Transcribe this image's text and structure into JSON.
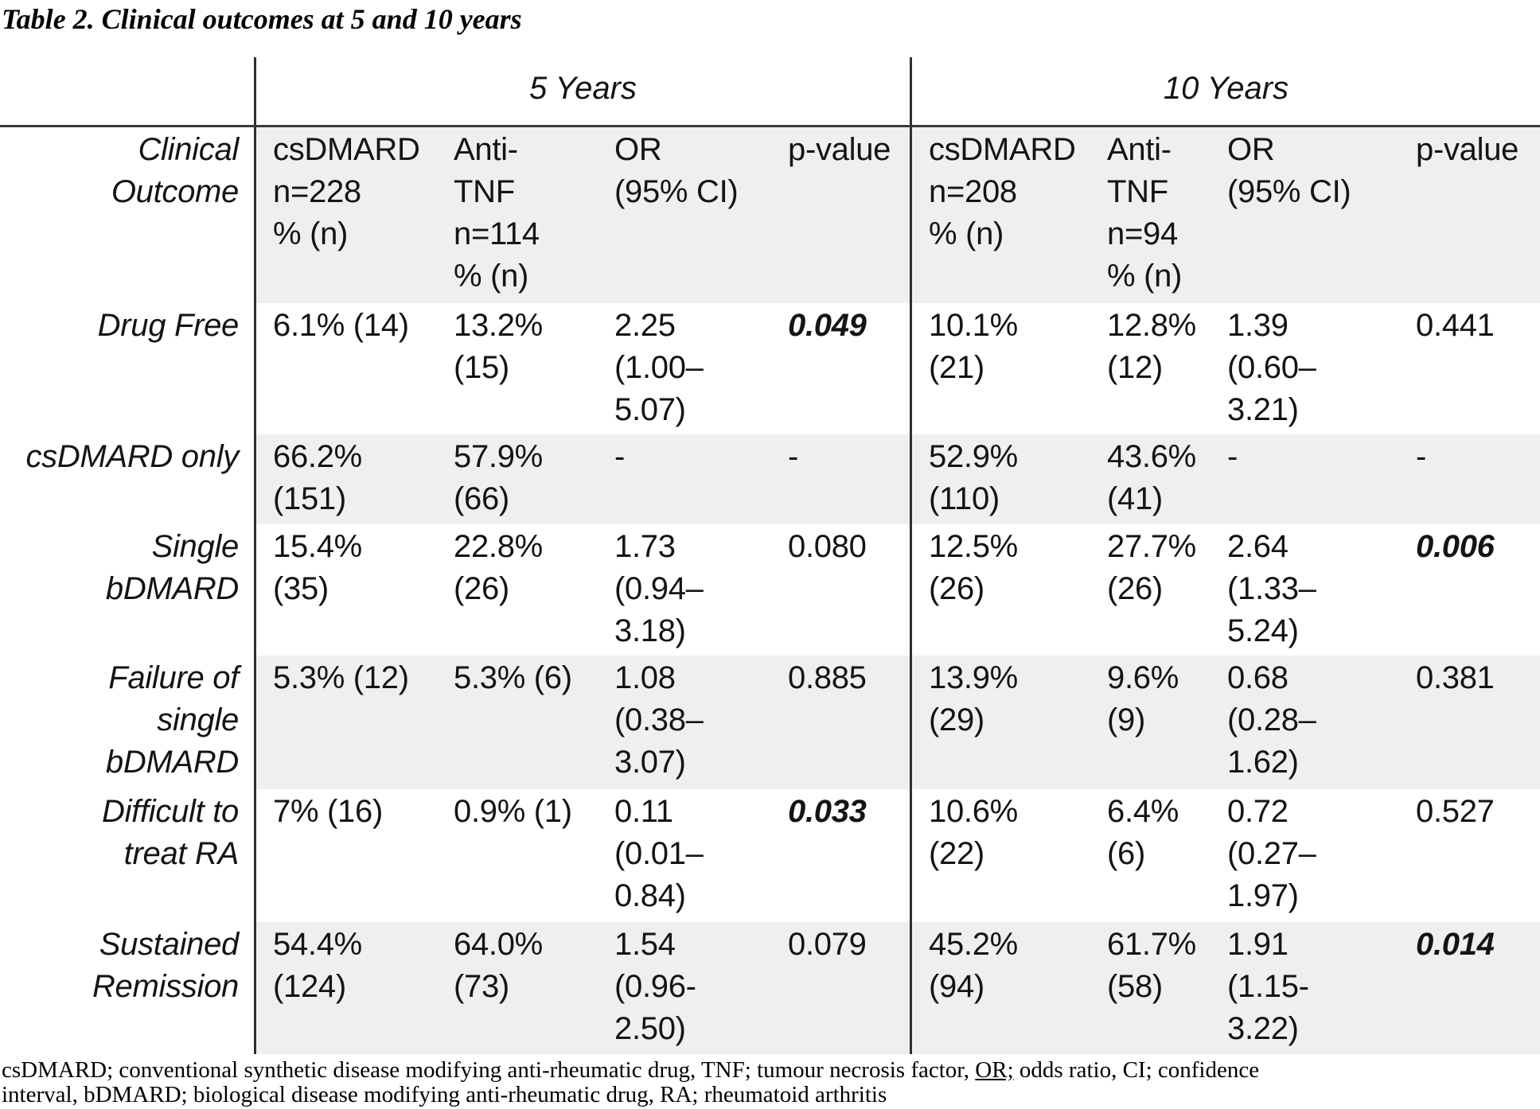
{
  "title": "Table 2. Clinical outcomes at 5 and 10 years",
  "table": {
    "group_headers": [
      "5 Years",
      "10 Years"
    ],
    "header": {
      "label": "Clinical\nOutcome",
      "c1": "csDMARD\nn=228\n% (n)",
      "c2": "Anti-\nTNF\nn=114\n% (n)",
      "c3": "OR\n(95% CI)",
      "c4": "p-value",
      "c5": "csDMARD\nn=208\n% (n)",
      "c6": "Anti-\nTNF\nn=94\n% (n)",
      "c7": "OR\n(95% CI)",
      "c8": "p-value"
    },
    "rows": [
      {
        "label": "Drug Free",
        "c1": "6.1% (14)",
        "c2": "13.2%\n(15)",
        "c3": "2.25\n(1.00–\n5.07)",
        "c4": "0.049",
        "c4_sig": true,
        "c5": "10.1%\n(21)",
        "c6": "12.8%\n(12)",
        "c7": "1.39\n(0.60–\n3.21)",
        "c8": "0.441",
        "c8_sig": false
      },
      {
        "label": "csDMARD only",
        "c1": "66.2%\n(151)",
        "c2": "57.9%\n(66)",
        "c3": "-",
        "c4": "-",
        "c4_sig": false,
        "c5": "52.9%\n(110)",
        "c6": "43.6%\n(41)",
        "c7": "-",
        "c8": "-",
        "c8_sig": false
      },
      {
        "label": "Single\nbDMARD",
        "c1": "15.4%\n(35)",
        "c2": "22.8%\n(26)",
        "c3": "1.73\n(0.94–\n3.18)",
        "c4": "0.080",
        "c4_sig": false,
        "c5": "12.5%\n(26)",
        "c6": "27.7%\n(26)",
        "c7": "2.64\n(1.33–\n5.24)",
        "c8": "0.006",
        "c8_sig": true
      },
      {
        "label": "Failure of\nsingle\nbDMARD",
        "c1": "5.3% (12)",
        "c2": "5.3% (6)",
        "c3": "1.08\n(0.38–\n3.07)",
        "c4": "0.885",
        "c4_sig": false,
        "c5": "13.9%\n(29)",
        "c6": "9.6%\n(9)",
        "c7": "0.68\n(0.28–\n1.62)",
        "c8": "0.381",
        "c8_sig": false
      },
      {
        "label": "Difficult to\ntreat RA",
        "c1": "7% (16)",
        "c2": "0.9% (1)",
        "c3": "0.11\n(0.01–\n0.84)",
        "c4": "0.033",
        "c4_sig": true,
        "c5": "10.6%\n(22)",
        "c6": "6.4%\n(6)",
        "c7": "0.72\n(0.27–\n1.97)",
        "c8": "0.527",
        "c8_sig": false
      },
      {
        "label": "Sustained\nRemission",
        "c1": "54.4%\n(124)",
        "c2": "64.0%\n(73)",
        "c3": "1.54\n(0.96-\n2.50)",
        "c4": "0.079",
        "c4_sig": false,
        "c5": "45.2%\n(94)",
        "c6": "61.7%\n(58)",
        "c7": "1.91\n(1.15-\n3.22)",
        "c8": "0.014",
        "c8_sig": true
      }
    ]
  },
  "footnote": {
    "part1": "csDMARD; conventional synthetic disease modifying anti-rheumatic drug, TNF; tumour necrosis factor, ",
    "or_label": "OR;",
    "part2": " odds ratio, CI; confidence",
    "line2": "interval, bDMARD; biological disease modifying anti-rheumatic drug, RA; rheumatoid arthritis"
  }
}
